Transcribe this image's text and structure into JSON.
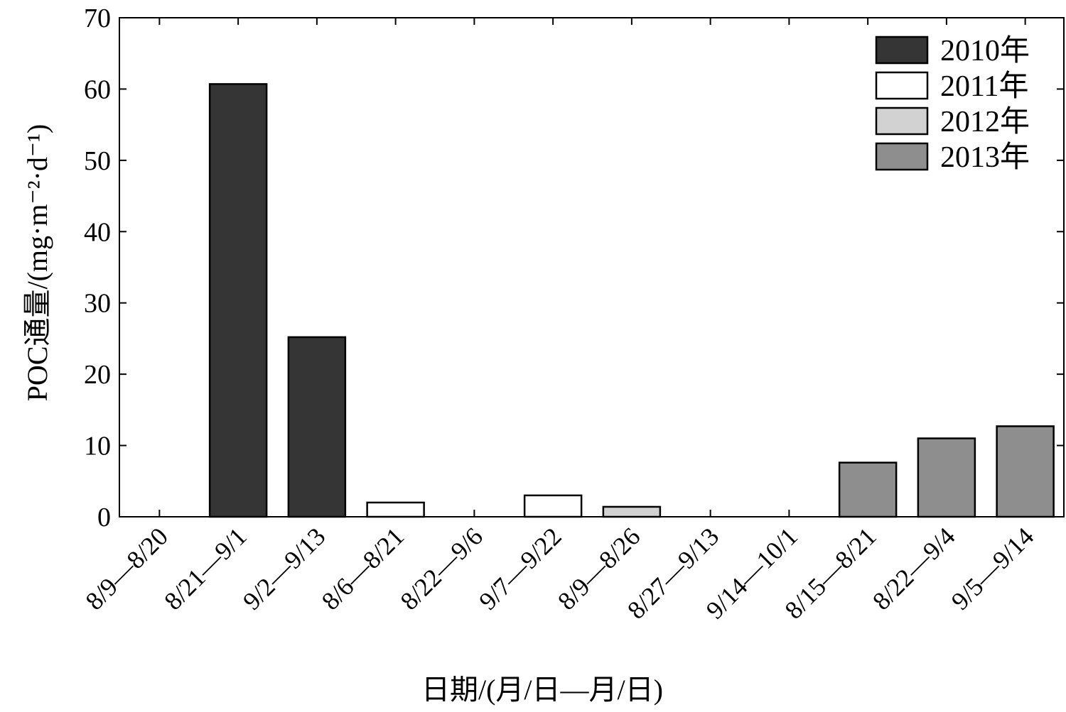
{
  "chart_data": {
    "type": "bar",
    "title": "",
    "ylabel": "POC通量/(mg·m⁻²·d⁻¹)",
    "xlabel": "日期/(月/日—月/日)",
    "ylim": [
      0,
      70
    ],
    "yticks": [
      0,
      10,
      20,
      30,
      40,
      50,
      60,
      70
    ],
    "grid": false,
    "legend_position": "top-right",
    "categories": [
      "8/9—8/20",
      "8/21—9/1",
      "9/2—9/13",
      "8/6—8/21",
      "8/22—9/6",
      "9/7—9/22",
      "8/9—8/26",
      "8/27—9/13",
      "9/14—10/1",
      "8/15—8/21",
      "8/22—9/4",
      "9/5—9/14"
    ],
    "series": [
      {
        "name": "2010年",
        "color": "#353535",
        "values": [
          0,
          60.7,
          25.2,
          null,
          null,
          null,
          null,
          null,
          null,
          null,
          null,
          null
        ]
      },
      {
        "name": "2011年",
        "color": "#ffffff",
        "values": [
          null,
          null,
          null,
          2.0,
          0,
          3.0,
          null,
          null,
          null,
          null,
          null,
          null
        ]
      },
      {
        "name": "2012年",
        "color": "#d2d2d2",
        "values": [
          null,
          null,
          null,
          null,
          null,
          null,
          1.4,
          0,
          0,
          null,
          null,
          null
        ]
      },
      {
        "name": "2013年",
        "color": "#8e8e8e",
        "values": [
          null,
          null,
          null,
          null,
          null,
          null,
          null,
          null,
          null,
          7.6,
          11.0,
          12.7
        ]
      }
    ]
  }
}
